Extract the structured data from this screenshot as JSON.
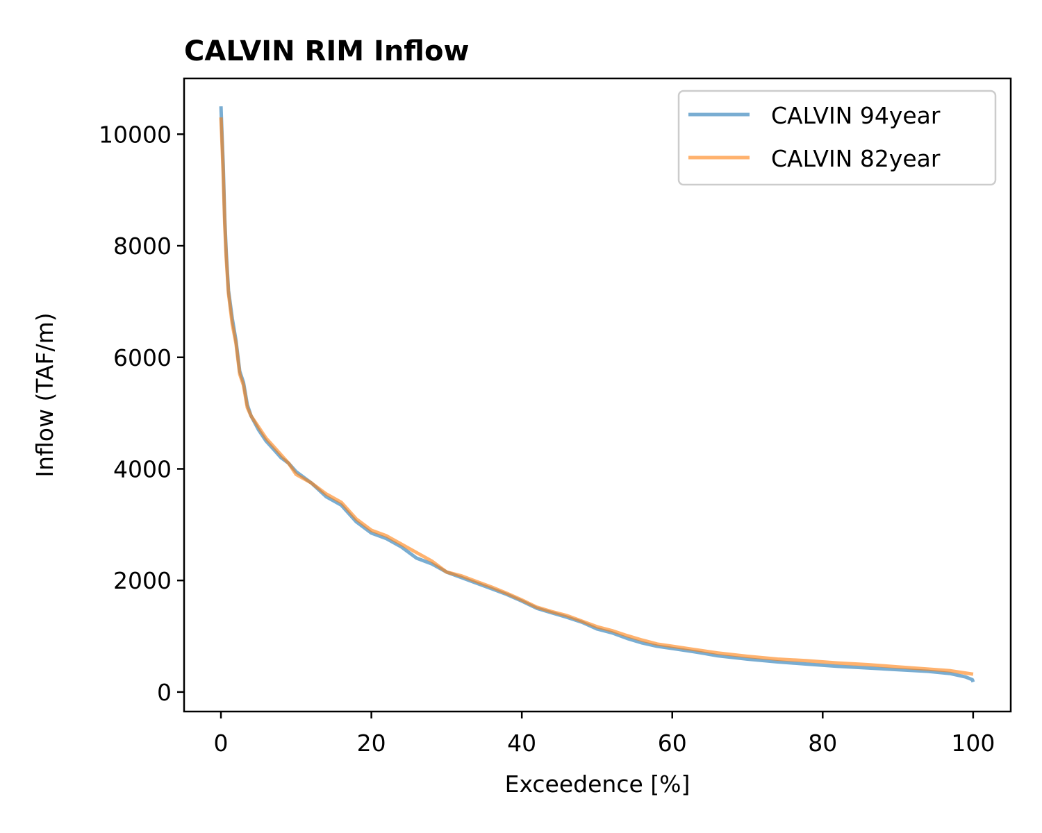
{
  "chart_data": {
    "type": "line",
    "title": "CALVIN RIM Inflow",
    "xlabel": "Exceedence [%]",
    "ylabel": "Inflow (TAF/m)",
    "xlim": [
      -4.9,
      105
    ],
    "ylim": [
      -350,
      11000
    ],
    "xticks": [
      0,
      20,
      40,
      60,
      80,
      100
    ],
    "yticks": [
      0,
      2000,
      4000,
      6000,
      8000,
      10000
    ],
    "grid": false,
    "legend_position": "top-right",
    "series": [
      {
        "name": "CALVIN 94year",
        "color": "#1f77b4",
        "opacity": 0.6,
        "x": [
          0,
          0.1,
          0.3,
          0.5,
          0.7,
          1,
          1.5,
          2,
          2.5,
          3,
          3.5,
          4,
          5,
          6,
          7,
          8,
          9,
          10,
          12,
          14,
          16,
          18,
          20,
          22,
          24,
          26,
          28,
          30,
          32,
          34,
          36,
          38,
          40,
          42,
          44,
          46,
          48,
          50,
          52,
          54,
          56,
          58,
          60,
          63,
          66,
          70,
          74,
          78,
          82,
          86,
          90,
          94,
          97,
          99,
          99.9,
          100
        ],
        "y": [
          10500,
          10150,
          9450,
          8500,
          7900,
          7200,
          6700,
          6300,
          5750,
          5550,
          5150,
          4950,
          4700,
          4500,
          4350,
          4200,
          4100,
          3950,
          3750,
          3500,
          3350,
          3050,
          2850,
          2750,
          2600,
          2400,
          2300,
          2150,
          2050,
          1950,
          1850,
          1750,
          1630,
          1500,
          1420,
          1340,
          1250,
          1130,
          1060,
          960,
          880,
          820,
          780,
          720,
          650,
          590,
          540,
          500,
          460,
          430,
          400,
          370,
          330,
          270,
          220,
          180
        ]
      },
      {
        "name": "CALVIN 82year",
        "color": "#ff7f0e",
        "opacity": 0.6,
        "x": [
          0,
          0.1,
          0.3,
          0.5,
          0.7,
          1,
          1.5,
          2,
          2.5,
          3,
          3.5,
          4,
          5,
          6,
          7,
          8,
          9,
          10,
          12,
          14,
          16,
          18,
          20,
          22,
          24,
          26,
          28,
          30,
          32,
          34,
          36,
          38,
          40,
          42,
          44,
          46,
          48,
          50,
          52,
          54,
          56,
          58,
          60,
          63,
          66,
          70,
          74,
          78,
          82,
          86,
          90,
          94,
          97,
          99,
          100
        ],
        "y": [
          10300,
          10000,
          9300,
          8400,
          7800,
          7150,
          6600,
          6250,
          5700,
          5500,
          5100,
          4950,
          4750,
          4550,
          4400,
          4250,
          4100,
          3900,
          3750,
          3550,
          3400,
          3100,
          2900,
          2800,
          2650,
          2500,
          2350,
          2150,
          2080,
          1980,
          1880,
          1770,
          1650,
          1520,
          1440,
          1370,
          1270,
          1170,
          1100,
          1010,
          930,
          860,
          820,
          760,
          700,
          640,
          590,
          560,
          520,
          490,
          450,
          410,
          380,
          340,
          320
        ]
      }
    ]
  }
}
